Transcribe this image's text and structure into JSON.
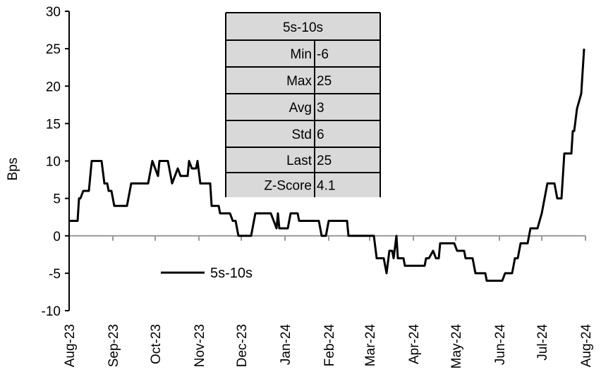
{
  "chart_data": {
    "type": "line",
    "title": "",
    "xlabel": "",
    "ylabel": "Bps",
    "ylim": [
      -10,
      30
    ],
    "yticks": [
      30,
      25,
      20,
      15,
      10,
      5,
      0,
      -5,
      -10
    ],
    "xlim": [
      "2023-08-01",
      "2024-08-01"
    ],
    "xtick_labels": [
      "Aug-23",
      "Sep-23",
      "Oct-23",
      "Nov-23",
      "Dec-23",
      "Jan-24",
      "Feb-24",
      "Mar-24",
      "Apr-24",
      "May-24",
      "Jun-24",
      "Jul-24",
      "Aug-24"
    ],
    "xtick_dates": [
      "2023-08-01",
      "2023-09-01",
      "2023-10-01",
      "2023-11-01",
      "2023-12-01",
      "2024-01-01",
      "2024-02-01",
      "2024-03-01",
      "2024-04-01",
      "2024-05-01",
      "2024-06-01",
      "2024-07-01",
      "2024-08-01"
    ],
    "grid": false,
    "legend_placement": "bottom-left",
    "series": [
      {
        "name": "5s-10s",
        "color": "#000000",
        "points": [
          [
            "2023-08-01",
            2
          ],
          [
            "2023-08-07",
            2
          ],
          [
            "2023-08-08",
            5
          ],
          [
            "2023-08-09",
            5
          ],
          [
            "2023-08-11",
            6
          ],
          [
            "2023-08-15",
            6
          ],
          [
            "2023-08-17",
            10
          ],
          [
            "2023-08-24",
            10
          ],
          [
            "2023-08-26",
            7
          ],
          [
            "2023-08-28",
            7
          ],
          [
            "2023-08-29",
            6
          ],
          [
            "2023-08-31",
            6
          ],
          [
            "2023-09-02",
            4
          ],
          [
            "2023-09-11",
            4
          ],
          [
            "2023-09-14",
            7
          ],
          [
            "2023-09-26",
            7
          ],
          [
            "2023-09-29",
            10
          ],
          [
            "2023-10-03",
            8
          ],
          [
            "2023-10-04",
            10
          ],
          [
            "2023-10-10",
            10
          ],
          [
            "2023-10-13",
            7
          ],
          [
            "2023-10-17",
            9
          ],
          [
            "2023-10-19",
            8
          ],
          [
            "2023-10-24",
            8
          ],
          [
            "2023-10-25",
            10
          ],
          [
            "2023-10-27",
            9
          ],
          [
            "2023-10-30",
            9
          ],
          [
            "2023-10-31",
            10
          ],
          [
            "2023-11-02",
            7
          ],
          [
            "2023-11-09",
            7
          ],
          [
            "2023-11-10",
            4
          ],
          [
            "2023-11-15",
            4
          ],
          [
            "2023-11-16",
            3
          ],
          [
            "2023-11-23",
            3
          ],
          [
            "2023-11-25",
            2
          ],
          [
            "2023-11-27",
            2
          ],
          [
            "2023-11-29",
            0
          ],
          [
            "2023-12-08",
            0
          ],
          [
            "2023-12-11",
            3
          ],
          [
            "2023-12-22",
            3
          ],
          [
            "2023-12-26",
            1
          ],
          [
            "2023-12-27",
            3
          ],
          [
            "2023-12-28",
            1
          ],
          [
            "2024-01-03",
            1
          ],
          [
            "2024-01-05",
            3
          ],
          [
            "2024-01-10",
            3
          ],
          [
            "2024-01-11",
            2
          ],
          [
            "2024-01-25",
            2
          ],
          [
            "2024-01-27",
            0
          ],
          [
            "2024-01-30",
            0
          ],
          [
            "2024-02-01",
            2
          ],
          [
            "2024-02-14",
            2
          ],
          [
            "2024-02-15",
            0
          ],
          [
            "2024-03-04",
            0
          ],
          [
            "2024-03-06",
            -3
          ],
          [
            "2024-03-11",
            -3
          ],
          [
            "2024-03-13",
            -5
          ],
          [
            "2024-03-15",
            -2
          ],
          [
            "2024-03-17",
            -2
          ],
          [
            "2024-03-18",
            -3
          ],
          [
            "2024-03-20",
            0
          ],
          [
            "2024-03-21",
            -3
          ],
          [
            "2024-03-25",
            -3
          ],
          [
            "2024-03-26",
            -4
          ],
          [
            "2024-04-09",
            -4
          ],
          [
            "2024-04-10",
            -3
          ],
          [
            "2024-04-12",
            -3
          ],
          [
            "2024-04-15",
            -2
          ],
          [
            "2024-04-17",
            -3
          ],
          [
            "2024-04-19",
            -3
          ],
          [
            "2024-04-20",
            -1
          ],
          [
            "2024-04-30",
            -1
          ],
          [
            "2024-05-02",
            -2
          ],
          [
            "2024-05-07",
            -2
          ],
          [
            "2024-05-08",
            -3
          ],
          [
            "2024-05-13",
            -3
          ],
          [
            "2024-05-15",
            -5
          ],
          [
            "2024-05-22",
            -5
          ],
          [
            "2024-05-23",
            -6
          ],
          [
            "2024-06-03",
            -6
          ],
          [
            "2024-06-05",
            -5
          ],
          [
            "2024-06-10",
            -5
          ],
          [
            "2024-06-12",
            -3
          ],
          [
            "2024-06-14",
            -3
          ],
          [
            "2024-06-16",
            -1
          ],
          [
            "2024-06-21",
            -1
          ],
          [
            "2024-06-23",
            1
          ],
          [
            "2024-06-28",
            1
          ],
          [
            "2024-07-01",
            3
          ],
          [
            "2024-07-03",
            5
          ],
          [
            "2024-07-05",
            7
          ],
          [
            "2024-07-10",
            7
          ],
          [
            "2024-07-12",
            5
          ],
          [
            "2024-07-15",
            5
          ],
          [
            "2024-07-17",
            11
          ],
          [
            "2024-07-22",
            11
          ],
          [
            "2024-07-23",
            14
          ],
          [
            "2024-07-24",
            14
          ],
          [
            "2024-07-26",
            17
          ],
          [
            "2024-07-29",
            19
          ],
          [
            "2024-07-31",
            25
          ]
        ]
      }
    ],
    "stats_table": {
      "header": "5s-10s",
      "fill_color": "#d9d9d9",
      "rows": [
        {
          "label": "Min",
          "value": "-6"
        },
        {
          "label": "Max",
          "value": "25"
        },
        {
          "label": "Avg",
          "value": "3"
        },
        {
          "label": "Std",
          "value": "6"
        },
        {
          "label": "Last",
          "value": "25"
        },
        {
          "label": "Z-Score",
          "value": "4.1"
        }
      ]
    }
  }
}
